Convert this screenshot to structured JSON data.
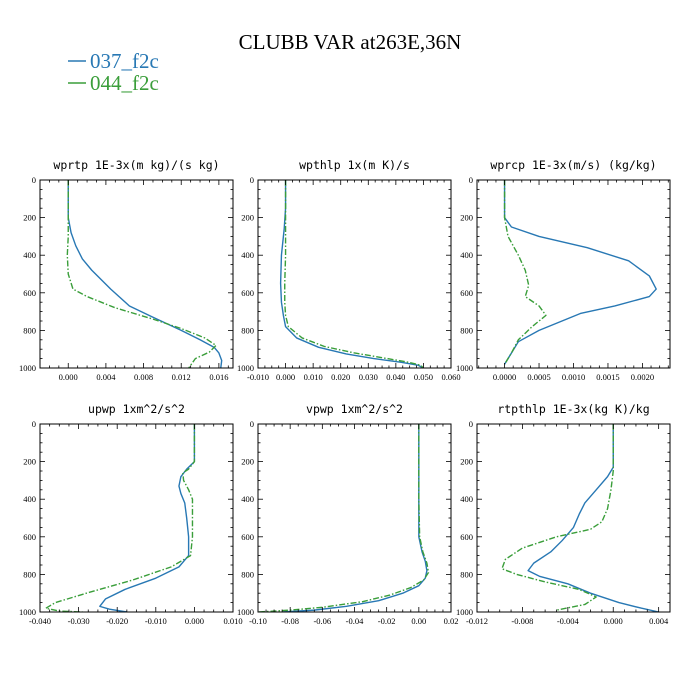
{
  "figure": {
    "title": "CLUBB VAR at263E,36N"
  },
  "legend": [
    {
      "name": "037_f2c",
      "color": "#2878b4",
      "dash": "solid"
    },
    {
      "name": "044_f2c",
      "color": "#3a9e3a",
      "dash": "dashdot"
    }
  ],
  "chart_data": [
    {
      "type": "line",
      "title": "wprtp  1E-3x(m kg)/(s kg)",
      "xlim": [
        -0.003,
        0.0175
      ],
      "ylim": [
        1000,
        0
      ],
      "xticks": [
        0.0,
        0.004,
        0.008,
        0.012,
        0.016
      ],
      "xtick_labels": [
        "0.000",
        "0.004",
        "0.008",
        "0.012",
        "0.016"
      ],
      "yticks": [
        0,
        200,
        400,
        600,
        800,
        1000
      ],
      "ytick_labels": [
        "0",
        "200",
        "400",
        "600",
        "800",
        "1000"
      ],
      "series": [
        {
          "name": "037_f2c",
          "points": [
            [
              0.0,
              0
            ],
            [
              0.0,
              100
            ],
            [
              0.0,
              200
            ],
            [
              0.0003,
              280
            ],
            [
              0.0008,
              350
            ],
            [
              0.0015,
              420
            ],
            [
              0.0025,
              480
            ],
            [
              0.0045,
              580
            ],
            [
              0.0065,
              670
            ],
            [
              0.009,
              730
            ],
            [
              0.012,
              800
            ],
            [
              0.014,
              850
            ],
            [
              0.0155,
              890
            ],
            [
              0.016,
              920
            ],
            [
              0.0163,
              960
            ],
            [
              0.0162,
              1000
            ]
          ]
        },
        {
          "name": "044_f2c",
          "points": [
            [
              0.0,
              0
            ],
            [
              0.0,
              100
            ],
            [
              0.0,
              200
            ],
            [
              0.0,
              300
            ],
            [
              -0.0001,
              400
            ],
            [
              0.0,
              500
            ],
            [
              0.0005,
              580
            ],
            [
              0.002,
              620
            ],
            [
              0.005,
              680
            ],
            [
              0.009,
              740
            ],
            [
              0.012,
              790
            ],
            [
              0.0145,
              840
            ],
            [
              0.0157,
              880
            ],
            [
              0.015,
              915
            ],
            [
              0.0135,
              950
            ],
            [
              0.0128,
              1000
            ]
          ]
        }
      ]
    },
    {
      "type": "line",
      "title": "wpthlp  1x(m K)/s",
      "xlim": [
        -0.01,
        0.06
      ],
      "ylim": [
        1000,
        0
      ],
      "xticks": [
        -0.01,
        0.0,
        0.01,
        0.02,
        0.03,
        0.04,
        0.05,
        0.06
      ],
      "xtick_labels": [
        "-0.010",
        "0.000",
        "0.010",
        "0.020",
        "0.030",
        "0.040",
        "0.050",
        "0.060"
      ],
      "yticks": [
        0,
        200,
        400,
        600,
        800,
        1000
      ],
      "ytick_labels": [
        "0",
        "200",
        "400",
        "600",
        "800",
        "1000"
      ],
      "series": [
        {
          "name": "037_f2c",
          "points": [
            [
              0.0,
              0
            ],
            [
              0.0,
              150
            ],
            [
              -0.0005,
              260
            ],
            [
              -0.0015,
              400
            ],
            [
              -0.0018,
              550
            ],
            [
              -0.0015,
              650
            ],
            [
              -0.0008,
              720
            ],
            [
              0.0,
              780
            ],
            [
              0.004,
              840
            ],
            [
              0.012,
              890
            ],
            [
              0.022,
              925
            ],
            [
              0.032,
              950
            ],
            [
              0.042,
              970
            ],
            [
              0.048,
              985
            ],
            [
              0.05,
              1000
            ]
          ]
        },
        {
          "name": "044_f2c",
          "points": [
            [
              0.0,
              0
            ],
            [
              0.0,
              150
            ],
            [
              0.0,
              260
            ],
            [
              0.0,
              400
            ],
            [
              -0.0003,
              550
            ],
            [
              -0.0003,
              650
            ],
            [
              0.0,
              720
            ],
            [
              0.001,
              780
            ],
            [
              0.006,
              840
            ],
            [
              0.014,
              885
            ],
            [
              0.025,
              920
            ],
            [
              0.035,
              945
            ],
            [
              0.044,
              968
            ],
            [
              0.049,
              985
            ],
            [
              0.05,
              1000
            ]
          ]
        }
      ]
    },
    {
      "type": "line",
      "title": "wprcp  1E-3x(m/s) (kg/kg)",
      "xlim": [
        -0.0004,
        0.0024
      ],
      "ylim": [
        1000,
        0
      ],
      "xticks": [
        0.0,
        0.0005,
        0.001,
        0.0015,
        0.002
      ],
      "xtick_labels": [
        "0.0000",
        "0.0005",
        "0.0010",
        "0.0015",
        "0.0020"
      ],
      "yticks": [
        0,
        200,
        400,
        600,
        800,
        1000
      ],
      "ytick_labels": [
        "0",
        "200",
        "400",
        "600",
        "800",
        "1000"
      ],
      "series": [
        {
          "name": "037_f2c",
          "points": [
            [
              0.0,
              0
            ],
            [
              0.0,
              100
            ],
            [
              0.0,
              200
            ],
            [
              0.0001,
              250
            ],
            [
              0.0005,
              300
            ],
            [
              0.0012,
              360
            ],
            [
              0.0018,
              430
            ],
            [
              0.0021,
              510
            ],
            [
              0.0022,
              580
            ],
            [
              0.0021,
              620
            ],
            [
              0.0016,
              670
            ],
            [
              0.0011,
              710
            ],
            [
              0.0009,
              740
            ],
            [
              0.0005,
              800
            ],
            [
              0.0002,
              860
            ],
            [
              0.0001,
              920
            ],
            [
              0.0,
              980
            ]
          ]
        },
        {
          "name": "044_f2c",
          "points": [
            [
              0.0,
              0
            ],
            [
              0.0,
              100
            ],
            [
              0.0,
              200
            ],
            [
              5e-05,
              300
            ],
            [
              0.0002,
              400
            ],
            [
              0.0003,
              480
            ],
            [
              0.00035,
              560
            ],
            [
              0.0003,
              620
            ],
            [
              0.0005,
              670
            ],
            [
              0.0006,
              720
            ],
            [
              0.0004,
              780
            ],
            [
              0.0002,
              850
            ],
            [
              0.0001,
              920
            ],
            [
              0.0,
              980
            ]
          ]
        }
      ]
    },
    {
      "type": "line",
      "title": "upwp  1xm^2/s^2",
      "xlim": [
        -0.04,
        0.01
      ],
      "ylim": [
        1000,
        0
      ],
      "xticks": [
        -0.04,
        -0.03,
        -0.02,
        -0.01,
        0.0,
        0.01
      ],
      "xtick_labels": [
        "-0.040",
        "-0.030",
        "-0.020",
        "-0.010",
        "0.000",
        "0.010"
      ],
      "yticks": [
        0,
        200,
        400,
        600,
        800,
        1000
      ],
      "ytick_labels": [
        "0",
        "200",
        "400",
        "600",
        "800",
        "1000"
      ],
      "series": [
        {
          "name": "037_f2c",
          "points": [
            [
              0.0,
              0
            ],
            [
              0.0,
              100
            ],
            [
              0.0,
              200
            ],
            [
              -0.002,
              240
            ],
            [
              -0.0035,
              280
            ],
            [
              -0.004,
              330
            ],
            [
              -0.0035,
              370
            ],
            [
              -0.0025,
              420
            ],
            [
              -0.002,
              500
            ],
            [
              -0.0015,
              600
            ],
            [
              -0.0015,
              700
            ],
            [
              -0.004,
              760
            ],
            [
              -0.01,
              820
            ],
            [
              -0.018,
              880
            ],
            [
              -0.023,
              930
            ],
            [
              -0.0245,
              970
            ],
            [
              -0.022,
              985
            ],
            [
              -0.0175,
              1000
            ]
          ]
        },
        {
          "name": "044_f2c",
          "points": [
            [
              0.0,
              0
            ],
            [
              0.0,
              100
            ],
            [
              0.0,
              200
            ],
            [
              -0.0015,
              240
            ],
            [
              -0.003,
              260
            ],
            [
              -0.0028,
              300
            ],
            [
              -0.0015,
              350
            ],
            [
              -0.0005,
              400
            ],
            [
              -0.0005,
              500
            ],
            [
              -0.0005,
              600
            ],
            [
              -0.001,
              700
            ],
            [
              -0.006,
              760
            ],
            [
              -0.016,
              830
            ],
            [
              -0.028,
              900
            ],
            [
              -0.036,
              950
            ],
            [
              -0.0385,
              980
            ],
            [
              -0.035,
              995
            ],
            [
              -0.029,
              1000
            ]
          ]
        }
      ]
    },
    {
      "type": "line",
      "title": "vpwp  1xm^2/s^2",
      "xlim": [
        -0.1,
        0.02
      ],
      "ylim": [
        1000,
        0
      ],
      "xticks": [
        -0.1,
        -0.08,
        -0.06,
        -0.04,
        -0.02,
        0.0,
        0.02
      ],
      "xtick_labels": [
        "-0.10",
        "-0.08",
        "-0.06",
        "-0.04",
        "-0.02",
        "0.00",
        "0.02"
      ],
      "yticks": [
        0,
        200,
        400,
        600,
        800,
        1000
      ],
      "ytick_labels": [
        "0",
        "200",
        "400",
        "600",
        "800",
        "1000"
      ],
      "series": [
        {
          "name": "037_f2c",
          "points": [
            [
              0.0,
              0
            ],
            [
              0.0,
              200
            ],
            [
              0.0,
              400
            ],
            [
              0.0,
              600
            ],
            [
              0.002,
              680
            ],
            [
              0.004,
              730
            ],
            [
              0.005,
              780
            ],
            [
              0.004,
              820
            ],
            [
              0.0,
              860
            ],
            [
              -0.01,
              900
            ],
            [
              -0.025,
              940
            ],
            [
              -0.045,
              970
            ],
            [
              -0.065,
              990
            ],
            [
              -0.085,
              1000
            ]
          ]
        },
        {
          "name": "044_f2c",
          "points": [
            [
              0.0,
              0
            ],
            [
              0.0,
              200
            ],
            [
              0.0,
              400
            ],
            [
              0.0005,
              600
            ],
            [
              0.0025,
              680
            ],
            [
              0.005,
              740
            ],
            [
              0.006,
              790
            ],
            [
              0.003,
              830
            ],
            [
              -0.005,
              870
            ],
            [
              -0.018,
              910
            ],
            [
              -0.035,
              945
            ],
            [
              -0.06,
              975
            ],
            [
              -0.08,
              990
            ],
            [
              -0.1,
              1000
            ]
          ]
        }
      ]
    },
    {
      "type": "line",
      "title": "rtpthlp  1E-3x(kg K)/kg",
      "xlim": [
        -0.012,
        0.005
      ],
      "ylim": [
        1000,
        0
      ],
      "xticks": [
        -0.012,
        -0.008,
        -0.004,
        0.0,
        0.004
      ],
      "xtick_labels": [
        "-0.012",
        "-0.008",
        "-0.004",
        "0.000",
        "0.004"
      ],
      "yticks": [
        0,
        200,
        400,
        600,
        800,
        1000
      ],
      "ytick_labels": [
        "0",
        "200",
        "400",
        "600",
        "800",
        "1000"
      ],
      "series": [
        {
          "name": "037_f2c",
          "points": [
            [
              0.0,
              0
            ],
            [
              0.0,
              150
            ],
            [
              0.0,
              230
            ],
            [
              -0.0005,
              280
            ],
            [
              -0.0015,
              350
            ],
            [
              -0.0025,
              420
            ],
            [
              -0.003,
              480
            ],
            [
              -0.0035,
              550
            ],
            [
              -0.0045,
              620
            ],
            [
              -0.0055,
              680
            ],
            [
              -0.007,
              740
            ],
            [
              -0.0075,
              780
            ],
            [
              -0.0065,
              810
            ],
            [
              -0.004,
              850
            ],
            [
              -0.002,
              900
            ],
            [
              0.0005,
              950
            ],
            [
              0.0025,
              980
            ],
            [
              0.004,
              1000
            ]
          ]
        },
        {
          "name": "044_f2c",
          "points": [
            [
              0.0,
              0
            ],
            [
              0.0,
              150
            ],
            [
              0.0,
              250
            ],
            [
              -0.0002,
              350
            ],
            [
              -0.0005,
              450
            ],
            [
              -0.001,
              520
            ],
            [
              -0.002,
              560
            ],
            [
              -0.005,
              600
            ],
            [
              -0.008,
              660
            ],
            [
              -0.0095,
              720
            ],
            [
              -0.0098,
              770
            ],
            [
              -0.0085,
              800
            ],
            [
              -0.006,
              840
            ],
            [
              -0.003,
              880
            ],
            [
              -0.0015,
              920
            ],
            [
              -0.0025,
              960
            ],
            [
              -0.005,
              990
            ]
          ]
        }
      ]
    }
  ]
}
